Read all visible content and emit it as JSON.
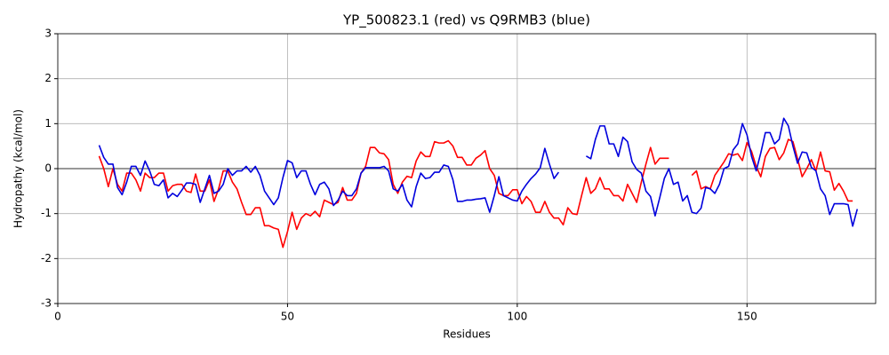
{
  "chart_data": {
    "type": "line",
    "title": "YP_500823.1 (red) vs Q9RMB3 (blue)",
    "x_label": "Residues",
    "y_label": "Hydropathy (kcal/mol)",
    "x": [
      9,
      10,
      11,
      12,
      13,
      14,
      15,
      16,
      17,
      18,
      19,
      20,
      21,
      22,
      23,
      24,
      25,
      26,
      27,
      28,
      29,
      30,
      31,
      32,
      33,
      34,
      35,
      36,
      37,
      38,
      39,
      40,
      41,
      42,
      43,
      44,
      45,
      46,
      47,
      48,
      49,
      50,
      51,
      52,
      53,
      54,
      55,
      56,
      57,
      58,
      59,
      60,
      61,
      62,
      63,
      64,
      65,
      66,
      67,
      68,
      69,
      70,
      71,
      72,
      73,
      74,
      75,
      76,
      77,
      78,
      79,
      80,
      81,
      82,
      83,
      84,
      85,
      86,
      87,
      88,
      89,
      90,
      91,
      92,
      93,
      94,
      95,
      96,
      97,
      98,
      99,
      100,
      101,
      102,
      103,
      104,
      105,
      106,
      107,
      108,
      109,
      110,
      111,
      112,
      113,
      114,
      115,
      116,
      117,
      118,
      119,
      120,
      121,
      122,
      123,
      124,
      125,
      126,
      127,
      128,
      129,
      130,
      131,
      132,
      133,
      134,
      135,
      136,
      137,
      138,
      139,
      140,
      141,
      142,
      143,
      144,
      145,
      146,
      147,
      148,
      149,
      150,
      151,
      152,
      153,
      154,
      155,
      156,
      157,
      158,
      159,
      160,
      161,
      162,
      163,
      164,
      165,
      166,
      167,
      168,
      169,
      170,
      171,
      172,
      173,
      174
    ],
    "series": [
      {
        "name": "YP_500823.1",
        "color": "#ff0000",
        "values": [
          0.28,
          0.0,
          -0.4,
          0.0,
          -0.35,
          -0.5,
          -0.1,
          -0.1,
          -0.25,
          -0.5,
          -0.1,
          -0.2,
          -0.2,
          -0.1,
          -0.1,
          -0.5,
          -0.38,
          -0.35,
          -0.35,
          -0.5,
          -0.53,
          -0.12,
          -0.5,
          -0.5,
          -0.25,
          -0.73,
          -0.45,
          -0.05,
          -0.05,
          -0.3,
          -0.45,
          -0.75,
          -1.02,
          -1.02,
          -0.87,
          -0.87,
          -1.27,
          -1.27,
          -1.32,
          -1.35,
          -1.75,
          -1.4,
          -0.97,
          -1.35,
          -1.1,
          -1.0,
          -1.05,
          -0.95,
          -1.07,
          -0.7,
          -0.75,
          -0.8,
          -0.75,
          -0.42,
          -0.7,
          -0.7,
          -0.55,
          -0.1,
          0.05,
          0.47,
          0.47,
          0.35,
          0.33,
          0.2,
          -0.35,
          -0.55,
          -0.3,
          -0.17,
          -0.2,
          0.17,
          0.37,
          0.27,
          0.27,
          0.6,
          0.57,
          0.57,
          0.62,
          0.5,
          0.25,
          0.25,
          0.08,
          0.08,
          0.23,
          0.3,
          0.4,
          0.0,
          -0.15,
          -0.55,
          -0.6,
          -0.6,
          -0.47,
          -0.47,
          -0.78,
          -0.62,
          -0.73,
          -0.97,
          -0.97,
          -0.73,
          -0.97,
          -1.1,
          -1.1,
          -1.25,
          -0.87,
          -1.0,
          -1.02,
          -0.6,
          -0.2,
          -0.55,
          -0.45,
          -0.2,
          -0.45,
          -0.45,
          -0.6,
          -0.6,
          -0.72,
          -0.35,
          -0.55,
          -0.75,
          -0.3,
          0.1,
          0.47,
          0.1,
          0.23,
          0.23,
          0.23,
          null,
          null,
          null,
          null,
          -0.15,
          -0.05,
          -0.45,
          -0.4,
          -0.45,
          -0.15,
          0.0,
          0.15,
          0.33,
          0.3,
          0.33,
          0.18,
          0.58,
          0.38,
          0.05,
          -0.18,
          0.27,
          0.45,
          0.47,
          0.2,
          0.35,
          0.65,
          0.6,
          0.22,
          -0.18,
          0.0,
          0.2,
          -0.05,
          0.37,
          -0.05,
          -0.07,
          -0.48,
          -0.33,
          -0.5,
          -0.72,
          -0.72,
          null
        ]
      },
      {
        "name": "Q9RMB3",
        "color": "#0000dd",
        "values": [
          0.52,
          0.25,
          0.1,
          0.1,
          -0.42,
          -0.58,
          -0.3,
          0.05,
          0.05,
          -0.15,
          0.17,
          -0.05,
          -0.35,
          -0.38,
          -0.25,
          -0.65,
          -0.55,
          -0.62,
          -0.48,
          -0.32,
          -0.32,
          -0.35,
          -0.75,
          -0.45,
          -0.15,
          -0.55,
          -0.5,
          -0.35,
          0.0,
          -0.15,
          -0.05,
          -0.05,
          0.05,
          -0.08,
          0.05,
          -0.15,
          -0.5,
          -0.65,
          -0.8,
          -0.65,
          -0.2,
          0.18,
          0.13,
          -0.2,
          -0.05,
          -0.05,
          -0.35,
          -0.58,
          -0.35,
          -0.3,
          -0.45,
          -0.82,
          -0.7,
          -0.5,
          -0.6,
          -0.6,
          -0.45,
          -0.1,
          0.02,
          0.02,
          0.02,
          0.02,
          0.05,
          -0.05,
          -0.45,
          -0.5,
          -0.35,
          -0.7,
          -0.85,
          -0.4,
          -0.1,
          -0.22,
          -0.2,
          -0.08,
          -0.08,
          0.08,
          0.05,
          -0.25,
          -0.73,
          -0.73,
          -0.7,
          -0.7,
          -0.68,
          -0.67,
          -0.65,
          -0.97,
          -0.6,
          -0.18,
          -0.6,
          -0.65,
          -0.7,
          -0.72,
          -0.5,
          -0.35,
          -0.22,
          -0.12,
          0.02,
          0.45,
          0.1,
          -0.22,
          -0.08,
          null,
          null,
          null,
          null,
          null,
          0.28,
          0.22,
          0.65,
          0.95,
          0.95,
          0.55,
          0.55,
          0.27,
          0.7,
          0.6,
          0.15,
          -0.02,
          -0.1,
          -0.5,
          -0.62,
          -1.05,
          -0.65,
          -0.22,
          0.0,
          -0.35,
          -0.3,
          -0.72,
          -0.6,
          -0.97,
          -1.0,
          -0.88,
          -0.42,
          -0.45,
          -0.55,
          -0.35,
          0.0,
          0.05,
          0.42,
          0.55,
          1.0,
          0.75,
          0.27,
          -0.05,
          0.35,
          0.8,
          0.8,
          0.55,
          0.65,
          1.12,
          0.95,
          0.5,
          0.12,
          0.37,
          0.35,
          0.03,
          -0.05,
          -0.45,
          -0.6,
          -1.02,
          -0.78,
          -0.78,
          -0.78,
          -0.8,
          -1.28,
          -0.9
        ]
      }
    ],
    "xlim": [
      0,
      178
    ],
    "ylim": [
      -3,
      3
    ],
    "xticks": [
      0,
      50,
      100,
      150
    ],
    "yticks": [
      -3,
      -2,
      -1,
      0,
      1,
      2,
      3
    ],
    "grid": true,
    "hline": 0
  }
}
